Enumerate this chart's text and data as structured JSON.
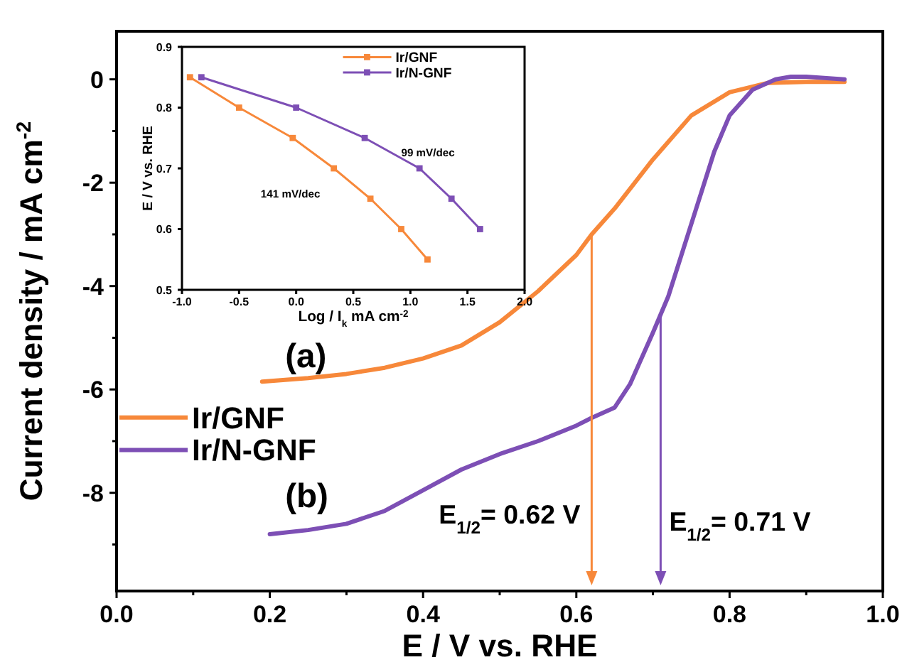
{
  "chart_data": [
    {
      "type": "line",
      "xlabel": "E / V vs. RHE",
      "ylabel": "Current density / mA cm$^{-2}$",
      "xlim": [
        0,
        1.0
      ],
      "xticks": [
        {
          "value": 0,
          "label": "0.0"
        },
        {
          "value": 0.1,
          "label": null
        },
        {
          "value": 0.2,
          "label": "0.2"
        },
        {
          "value": 0.3,
          "label": null
        },
        {
          "value": 0.4,
          "label": "0.4"
        },
        {
          "value": 0.5,
          "label": null
        },
        {
          "value": 0.6,
          "label": "0.6"
        },
        {
          "value": 0.7,
          "label": null
        },
        {
          "value": 0.8,
          "label": "0.8"
        },
        {
          "value": 0.9,
          "label": null
        },
        {
          "value": 1.0,
          "label": "1.0"
        }
      ],
      "ylim": [
        -9.9,
        0.93
      ],
      "yticks": [
        {
          "value": -9,
          "label": null
        },
        -8,
        {
          "value": -7,
          "label": null
        },
        -6,
        {
          "value": -5,
          "label": null
        },
        -4,
        {
          "value": -3,
          "label": null
        },
        -2,
        {
          "value": -1,
          "label": null
        },
        0
      ],
      "series": [
        {
          "name": "Ir/GNF",
          "color": "#f7883a",
          "x": [
            0.19,
            0.25,
            0.3,
            0.35,
            0.4,
            0.45,
            0.5,
            0.55,
            0.6,
            0.62,
            0.65,
            0.7,
            0.75,
            0.8,
            0.85,
            0.9,
            0.95
          ],
          "values": [
            -5.85,
            -5.78,
            -5.7,
            -5.58,
            -5.4,
            -5.15,
            -4.7,
            -4.1,
            -3.4,
            -3.0,
            -2.5,
            -1.55,
            -0.7,
            -0.25,
            -0.07,
            -0.05,
            -0.05
          ]
        },
        {
          "name": "Ir/N-GNF",
          "color": "#7d4fb5",
          "x": [
            0.2,
            0.25,
            0.3,
            0.35,
            0.4,
            0.45,
            0.5,
            0.55,
            0.6,
            0.62,
            0.65,
            0.67,
            0.7,
            0.72,
            0.75,
            0.78,
            0.8,
            0.83,
            0.86,
            0.88,
            0.9,
            0.95
          ],
          "values": [
            -8.8,
            -8.72,
            -8.6,
            -8.35,
            -7.95,
            -7.55,
            -7.25,
            -7.0,
            -6.7,
            -6.55,
            -6.35,
            -5.9,
            -4.9,
            -4.2,
            -2.8,
            -1.4,
            -0.7,
            -0.2,
            0.0,
            0.05,
            0.05,
            0.0
          ]
        }
      ],
      "annotations": [
        "(a)",
        "(b)"
      ],
      "ref_lines": [
        {
          "axis": "x",
          "value": 0.62,
          "label": "E$_{1/2}$= 0.62 V",
          "color": "#f7883a"
        },
        {
          "axis": "x",
          "value": 0.71,
          "label": "E$_{1/2}$= 0.71 V",
          "color": "#7d4fb5"
        }
      ],
      "legend": "left",
      "marker": "none",
      "grid": false
    },
    {
      "type": "line",
      "xlabel": "Log / I$_{k}$ mA cm$^{-2}$",
      "ylabel": "E / V vs. RHE",
      "xlim": [
        -1.0,
        2.0
      ],
      "xticks": [
        {
          "value": -1,
          "label": "-1.0"
        },
        {
          "value": -0.5,
          "label": "-0.5"
        },
        {
          "value": 0,
          "label": "0.0"
        },
        {
          "value": 0.5,
          "label": "0.5"
        },
        {
          "value": 1,
          "label": "1.0"
        },
        {
          "value": 1.5,
          "label": "1.5"
        },
        {
          "value": 2,
          "label": "2.0"
        }
      ],
      "ylim": [
        0.5,
        0.9
      ],
      "yticks": [
        0.5,
        0.6,
        0.7,
        0.8,
        0.9
      ],
      "series": [
        {
          "name": "Ir/GNF",
          "color": "#f7883a",
          "x": [
            -0.93,
            -0.5,
            -0.03,
            0.33,
            0.65,
            0.92,
            1.15
          ],
          "values": [
            0.85,
            0.8,
            0.75,
            0.7,
            0.65,
            0.6,
            0.55
          ]
        },
        {
          "name": "Ir/N-GNF",
          "color": "#7d4fb5",
          "x": [
            -0.83,
            0.0,
            0.6,
            1.08,
            1.36,
            1.61
          ],
          "values": [
            0.85,
            0.8,
            0.75,
            0.7,
            0.65,
            0.6
          ]
        }
      ],
      "annotations": [
        "141 mV/dec",
        "99 mV/dec"
      ],
      "legend": "top right",
      "marker": "square",
      "grid": false
    }
  ]
}
